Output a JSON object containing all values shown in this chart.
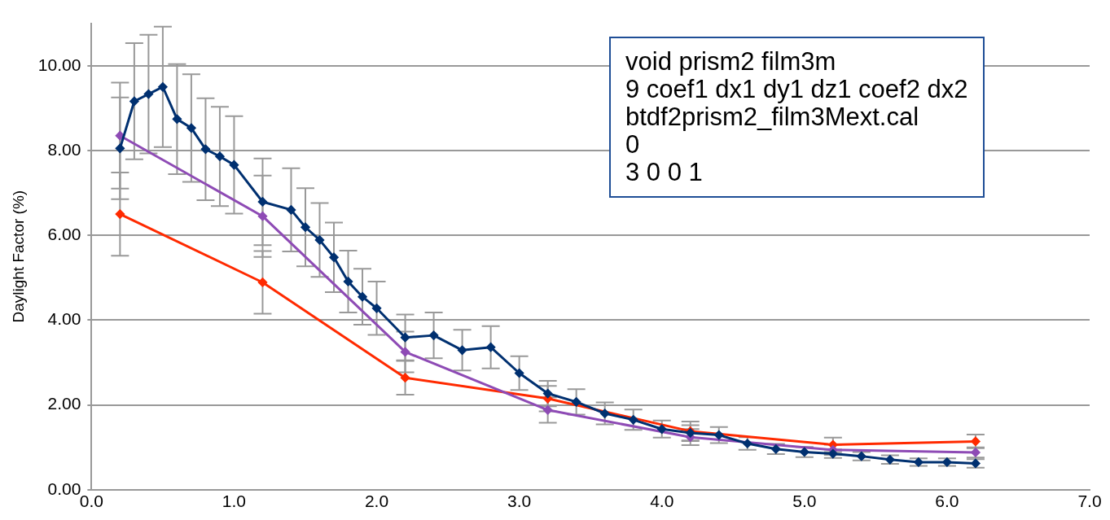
{
  "chart_data": {
    "type": "line",
    "ylabel": "Daylight Factor (%)",
    "xlim": [
      0,
      7
    ],
    "xticks": [
      {
        "value": 0,
        "label": "0.0"
      },
      {
        "value": 1,
        "label": "1.0"
      },
      {
        "value": 2,
        "label": "2.0"
      },
      {
        "value": 3,
        "label": "3.0"
      },
      {
        "value": 4,
        "label": "4.0"
      },
      {
        "value": 5,
        "label": "5.0"
      },
      {
        "value": 6,
        "label": "6.0"
      },
      {
        "value": 7,
        "label": "7.0"
      }
    ],
    "ylim": [
      0,
      11
    ],
    "yticks": [
      {
        "value": 0,
        "label": "0.00"
      },
      {
        "value": 2,
        "label": "2.00"
      },
      {
        "value": 4,
        "label": "4.00"
      },
      {
        "value": 6,
        "label": "6.00"
      },
      {
        "value": 8,
        "label": "8.00"
      },
      {
        "value": 10,
        "label": "10.00"
      }
    ],
    "grid": "y",
    "marker": "diamond",
    "line_style": "solid",
    "series": [
      {
        "color": "#ff2a00",
        "x": [
          0.2,
          1.2,
          2.2,
          3.2,
          4.2,
          5.2,
          6.2
        ],
        "values": [
          6.5,
          4.89,
          2.64,
          2.15,
          1.38,
          1.06,
          1.14
        ],
        "errors": [
          0.98,
          0.74,
          0.4,
          0.3,
          0.23,
          0.17,
          0.16
        ]
      },
      {
        "color": "#8e4bb5",
        "x": [
          0.2,
          1.2,
          2.2,
          3.2,
          4.2,
          5.2,
          6.2
        ],
        "values": [
          8.35,
          6.45,
          3.25,
          1.88,
          1.24,
          0.94,
          0.88
        ],
        "errors": [
          1.25,
          0.96,
          0.48,
          0.3,
          0.19,
          0.12,
          0.12
        ]
      },
      {
        "color": "#003070",
        "x": [
          0.2,
          0.3,
          0.4,
          0.5,
          0.6,
          0.7,
          0.8,
          0.9,
          1.0,
          1.2,
          1.4,
          1.5,
          1.6,
          1.7,
          1.8,
          1.9,
          2.0,
          2.2,
          2.4,
          2.6,
          2.8,
          3.0,
          3.2,
          3.4,
          3.6,
          3.8,
          4.0,
          4.2,
          4.4,
          4.6,
          4.8,
          5.0,
          5.2,
          5.4,
          5.6,
          5.8,
          6.0,
          6.2
        ],
        "values": [
          8.05,
          9.16,
          9.33,
          9.5,
          8.74,
          8.53,
          8.03,
          7.86,
          7.66,
          6.79,
          6.6,
          6.19,
          5.89,
          5.48,
          4.91,
          4.55,
          4.28,
          3.59,
          3.64,
          3.29,
          3.36,
          2.75,
          2.27,
          2.07,
          1.8,
          1.65,
          1.43,
          1.34,
          1.29,
          1.09,
          0.96,
          0.89,
          0.85,
          0.79,
          0.71,
          0.65,
          0.65,
          0.62
        ],
        "errors": [
          1.2,
          1.37,
          1.4,
          1.42,
          1.3,
          1.27,
          1.2,
          1.17,
          1.15,
          1.02,
          0.98,
          0.92,
          0.87,
          0.82,
          0.73,
          0.66,
          0.63,
          0.54,
          0.54,
          0.48,
          0.5,
          0.4,
          0.3,
          0.3,
          0.26,
          0.24,
          0.2,
          0.18,
          0.19,
          0.15,
          0.12,
          0.12,
          0.1,
          0.1,
          0.1,
          0.09,
          0.09,
          0.1
        ]
      }
    ],
    "annotations": [
      "void prism2 film3m",
      "9 coef1 dx1 dy1 dz1 coef2 dx2",
      "btdf2prism2_film3Mext.cal",
      "0",
      "3 0 0 1"
    ]
  }
}
